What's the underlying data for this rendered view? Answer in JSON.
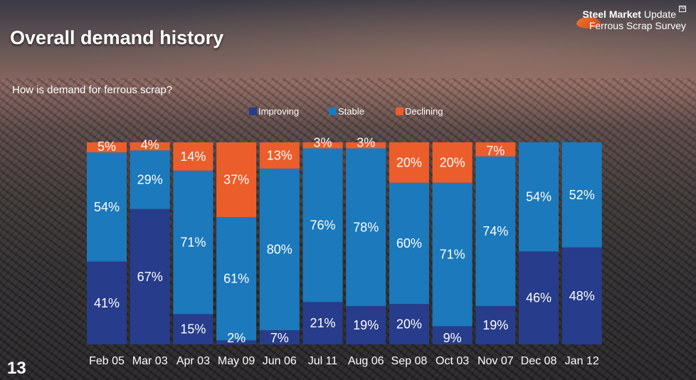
{
  "header": {
    "title": "Overall demand history",
    "logo_line1_bold": "Steel Market",
    "logo_line1_rest": "Update",
    "logo_tm": "TM",
    "logo_line2": "Ferrous Scrap Survey"
  },
  "page_number": "13",
  "colors": {
    "improving": "#273c8a",
    "stable": "#1c79bb",
    "declining": "#ec5d2c"
  },
  "chart_data": {
    "type": "bar",
    "stacked": true,
    "title": "How is demand for ferrous scrap?",
    "categories": [
      "Feb 05",
      "Mar 03",
      "Apr 03",
      "May 09",
      "Jun 06",
      "Jul 11",
      "Aug 06",
      "Sep 08",
      "Oct 03",
      "Nov 07",
      "Dec 08",
      "Jan 12"
    ],
    "series": [
      {
        "name": "Improving",
        "values": [
          41,
          67,
          15,
          2,
          7,
          21,
          19,
          20,
          9,
          19,
          46,
          48
        ]
      },
      {
        "name": "Stable",
        "values": [
          54,
          29,
          71,
          61,
          80,
          76,
          78,
          60,
          71,
          74,
          54,
          52
        ]
      },
      {
        "name": "Declining",
        "values": [
          5,
          4,
          14,
          37,
          13,
          3,
          3,
          20,
          20,
          7,
          null,
          null
        ]
      }
    ],
    "labels": [
      {
        "improving": "41%",
        "stable": "54%",
        "declining": "5%"
      },
      {
        "improving": "67%",
        "stable": "29%",
        "declining": "4%"
      },
      {
        "improving": "15%",
        "stable": "71%",
        "declining": "14%"
      },
      {
        "improving": "2%",
        "stable": "61%",
        "declining": "37%"
      },
      {
        "improving": "7%",
        "stable": "80%",
        "declining": "13%"
      },
      {
        "improving": "21%",
        "stable": "76%",
        "declining": "3%"
      },
      {
        "improving": "19%",
        "stable": "78%",
        "declining": "3%"
      },
      {
        "improving": "20%",
        "stable": "60%",
        "declining": "20%"
      },
      {
        "improving": "9%",
        "stable": "71%",
        "declining": "20%"
      },
      {
        "improving": "19%",
        "stable": "74%",
        "declining": "7%"
      },
      {
        "improving": "46%",
        "stable": "54%",
        "declining": null
      },
      {
        "improving": "48%",
        "stable": "52%",
        "declining": null
      }
    ],
    "legend": [
      "Improving",
      "Stable",
      "Declining"
    ],
    "legend_position": "top",
    "ylim": [
      0,
      100
    ],
    "xlabel": "",
    "ylabel": "",
    "grid": false
  }
}
